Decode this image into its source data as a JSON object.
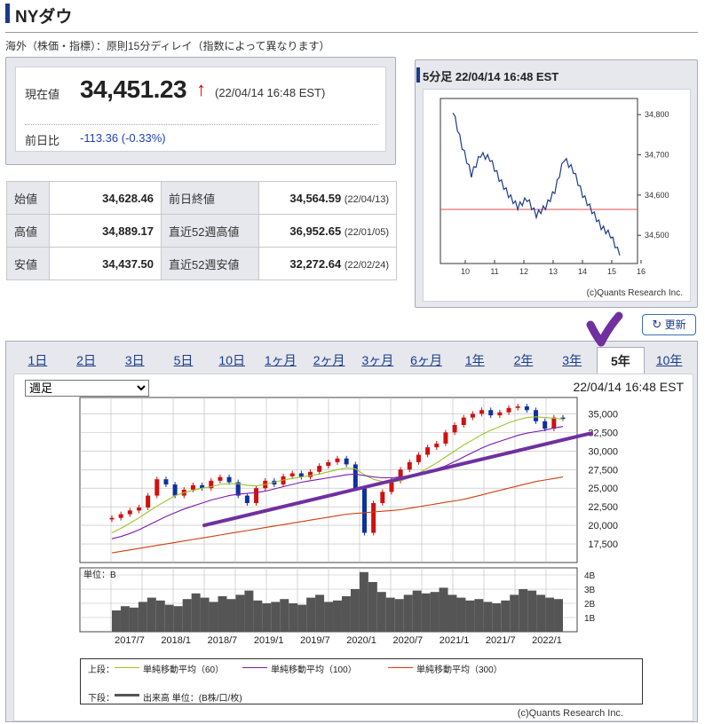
{
  "title": "NYダウ",
  "notice": "海外（株価・指標）：原則15分ディレイ（指数によって異なります）",
  "quote": {
    "current_label": "現在値",
    "price": "34,451.23",
    "arrow": "↑",
    "time": "(22/04/14 16:48 EST)",
    "change_label": "前日比",
    "change": "-113.36 (-0.33%)"
  },
  "stats": [
    {
      "l1": "始値",
      "v1": "34,628.46",
      "l2": "前日終値",
      "v2": "34,564.59",
      "d2": "(22/04/13)"
    },
    {
      "l1": "高値",
      "v1": "34,889.17",
      "l2": "直近52週高値",
      "v2": "36,952.65",
      "d2": "(22/01/05)"
    },
    {
      "l1": "安値",
      "v1": "34,437.50",
      "l2": "直近52週安値",
      "v2": "32,272.64",
      "d2": "(22/02/24)"
    }
  ],
  "intraday": {
    "title": "5分足 22/04/14 16:48 EST",
    "credit": "(c)Quants Research Inc."
  },
  "refresh_label": "更新",
  "tabs": [
    "1日",
    "2日",
    "3日",
    "5日",
    "10日",
    "1ヶ月",
    "2ヶ月",
    "3ヶ月",
    "6ヶ月",
    "1年",
    "2年",
    "3年",
    "5年",
    "10年"
  ],
  "active_tab": "5年",
  "period_select": "週足",
  "main_timestamp": "22/04/14 16:48 EST",
  "volume_unit_label": "単位：B",
  "legend": {
    "upper_label": "上段：",
    "sma60": "単純移動平均（60）",
    "sma100": "単純移動平均（100）",
    "sma300": "単純移動平均（300）",
    "lower_label": "下段：",
    "volume": "出来高 単位：(B株/口/枚)"
  },
  "main_credit": "(c)Quants Research Inc.",
  "colors": {
    "up": "#d01010",
    "down": "#1030a0",
    "sma60": "#9cc22a",
    "sma100": "#7a1ab0",
    "sma300": "#d04010",
    "annotation": "#7030a0",
    "navy": "#1a3a8c"
  },
  "chart_data": [
    {
      "type": "line",
      "series": [
        {
          "values": [
            34810,
            34720,
            34650,
            34700,
            34690,
            34640,
            34600,
            34570,
            34590,
            34550,
            34570,
            34610,
            34690,
            34660,
            34600,
            34560,
            34520,
            34500,
            34450
          ]
        }
      ],
      "x_ticks": [
        "10",
        "11",
        "12",
        "13",
        "14",
        "15",
        "16"
      ],
      "y_ticks": [
        "34,800",
        "34,700",
        "34,600",
        "34,500"
      ],
      "ylim": [
        34430,
        34840
      ],
      "reference_line": 34564.59
    },
    {
      "type": "bar",
      "series": [
        {
          "values": [
            21000,
            21500,
            22000,
            22400,
            24000,
            26200,
            25500,
            24000,
            24800,
            25400,
            25000,
            26000,
            26500,
            25800,
            24000,
            23000,
            25000,
            26000,
            25500,
            26600,
            27000,
            26500,
            27200,
            28000,
            28500,
            29000,
            28200,
            25000,
            19000,
            23000,
            24500,
            26000,
            27500,
            28500,
            29500,
            30500,
            31000,
            32500,
            33500,
            34500,
            35000,
            35500,
            34800,
            35200,
            35800,
            36000,
            35500,
            34000,
            33000,
            34500,
            34400
          ]
        },
        {
          "values": [
            19000,
            19600,
            20300,
            21000,
            21800,
            22600,
            23300,
            24000,
            24400,
            24700,
            25000,
            25200,
            25500,
            25600,
            25600,
            25400,
            25300,
            25500,
            25800,
            26100,
            26300,
            26500,
            26700,
            26900,
            27200,
            27500,
            27700,
            27600,
            26800,
            26200,
            25900,
            25800,
            26000,
            26400,
            27000,
            27700,
            28400,
            29200,
            30000,
            30800,
            31500,
            32200,
            32800,
            33300,
            33800,
            34200,
            34500,
            34600,
            34500,
            34400,
            34300
          ]
        },
        {
          "values": [
            18200,
            18500,
            18900,
            19400,
            20000,
            20600,
            21200,
            21700,
            22200,
            22600,
            23000,
            23400,
            23700,
            24000,
            24200,
            24300,
            24400,
            24600,
            24900,
            25200,
            25500,
            25800,
            26000,
            26200,
            26400,
            26600,
            26800,
            26900,
            26700,
            26500,
            26400,
            26400,
            26500,
            26700,
            26900,
            27200,
            27600,
            28000,
            28600,
            29200,
            29800,
            30400,
            30900,
            31300,
            31700,
            32100,
            32400,
            32600,
            32800,
            33100,
            33300
          ]
        },
        {
          "values": [
            16300,
            16500,
            16700,
            16900,
            17100,
            17300,
            17500,
            17700,
            17900,
            18100,
            18300,
            18500,
            18700,
            18900,
            19100,
            19300,
            19500,
            19700,
            19900,
            20100,
            20300,
            20500,
            20700,
            20900,
            21100,
            21300,
            21500,
            21600,
            21700,
            21800,
            21900,
            22000,
            22100,
            22300,
            22500,
            22700,
            22900,
            23100,
            23300,
            23500,
            23800,
            24100,
            24400,
            24700,
            25000,
            25300,
            25600,
            25900,
            26100,
            26300,
            26500
          ]
        }
      ],
      "volume": [
        1.5,
        1.8,
        1.7,
        2.1,
        2.4,
        2.2,
        1.9,
        1.8,
        2.3,
        2.7,
        2.4,
        2.1,
        2.5,
        2.3,
        2.6,
        2.9,
        2.2,
        2.0,
        2.1,
        2.3,
        2.0,
        1.9,
        2.4,
        2.6,
        2.1,
        2.2,
        2.5,
        3.0,
        4.2,
        3.5,
        2.8,
        2.4,
        2.3,
        2.6,
        2.9,
        2.7,
        2.8,
        3.1,
        2.6,
        2.4,
        2.2,
        2.3,
        2.1,
        2.0,
        2.2,
        2.6,
        3.0,
        2.9,
        2.6,
        2.4,
        2.3
      ],
      "x_ticks": [
        "2017/7",
        "2018/1",
        "2018/7",
        "2019/1",
        "2019/7",
        "2020/1",
        "2020/7",
        "2021/1",
        "2021/7",
        "2022/1"
      ],
      "y_ticks": [
        "35,000",
        "32,500",
        "30,000",
        "27,500",
        "25,000",
        "22,500",
        "20,000",
        "17,500"
      ],
      "volume_ticks": [
        "4B",
        "3B",
        "2B",
        "1B"
      ],
      "ylim": [
        15000,
        37200
      ],
      "volume_ylim": [
        0,
        4.5
      ]
    }
  ]
}
